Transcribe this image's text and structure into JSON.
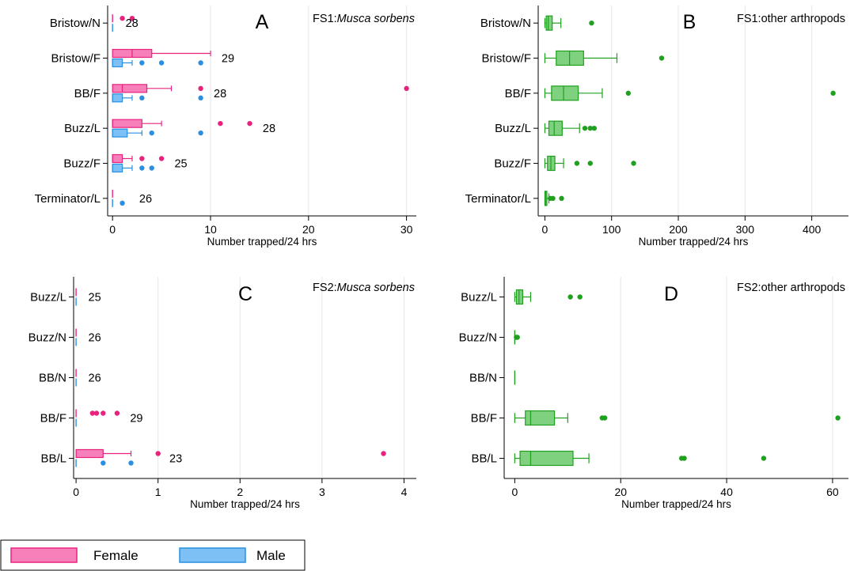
{
  "colors": {
    "female": "#e8237e",
    "female_fill": "#f77fba",
    "male": "#2a8fe0",
    "male_fill": "#7cc0f5",
    "other": "#1fa01f",
    "other_fill": "#7fd07f",
    "grid": "#e6e6e6"
  },
  "legend": {
    "items": [
      {
        "label": "Female",
        "key": "female"
      },
      {
        "label": "Male",
        "key": "male"
      }
    ]
  },
  "chart_data": [
    {
      "type": "box",
      "panel_letter": "A",
      "title_prefix": "FS1:",
      "title_species": "Musca sorbens",
      "xlabel": "Number trapped/24 hrs",
      "xlim": [
        -0.5,
        31
      ],
      "xticks": [
        0,
        10,
        20,
        30
      ],
      "categories": [
        "Bristow/N",
        "Bristow/F",
        "BB/F",
        "Buzz/L",
        "Buzz/F",
        "Terminator/L"
      ],
      "n_labels": [
        {
          "category": "Bristow/N",
          "text": "28",
          "x": 1.0
        },
        {
          "category": "Bristow/F",
          "text": "29",
          "x": 10.8
        },
        {
          "category": "BB/F",
          "text": "28",
          "x": 10.0
        },
        {
          "category": "Buzz/L",
          "text": "28",
          "x": 15.0
        },
        {
          "category": "Buzz/F",
          "text": "25",
          "x": 6.0
        },
        {
          "category": "Terminator/L",
          "text": "26",
          "x": 2.4
        }
      ],
      "series": [
        {
          "key": "female",
          "boxes": [
            {
              "category": "Bristow/N",
              "min": 0,
              "q1": 0,
              "median": 0,
              "q3": 0,
              "max": 0,
              "outliers": [
                1,
                2
              ]
            },
            {
              "category": "Bristow/F",
              "min": 0,
              "q1": 0,
              "median": 2,
              "q3": 4,
              "max": 10,
              "outliers": []
            },
            {
              "category": "BB/F",
              "min": 0,
              "q1": 0,
              "median": 1,
              "q3": 3.5,
              "max": 6,
              "outliers": [
                9,
                30
              ]
            },
            {
              "category": "Buzz/L",
              "min": 0,
              "q1": 0,
              "median": 0,
              "q3": 3,
              "max": 5,
              "outliers": [
                11,
                14
              ]
            },
            {
              "category": "Buzz/F",
              "min": 0,
              "q1": 0,
              "median": 0,
              "q3": 1,
              "max": 2,
              "outliers": [
                3,
                5
              ]
            },
            {
              "category": "Terminator/L",
              "min": 0,
              "q1": 0,
              "median": 0,
              "q3": 0,
              "max": 0,
              "outliers": []
            }
          ]
        },
        {
          "key": "male",
          "boxes": [
            {
              "category": "Bristow/N",
              "min": 0,
              "q1": 0,
              "median": 0,
              "q3": 0,
              "max": 0,
              "outliers": []
            },
            {
              "category": "Bristow/F",
              "min": 0,
              "q1": 0,
              "median": 0,
              "q3": 1,
              "max": 2,
              "outliers": [
                3,
                5,
                9
              ]
            },
            {
              "category": "BB/F",
              "min": 0,
              "q1": 0,
              "median": 0,
              "q3": 1,
              "max": 2,
              "outliers": [
                3,
                9
              ]
            },
            {
              "category": "Buzz/L",
              "min": 0,
              "q1": 0,
              "median": 0,
              "q3": 1.5,
              "max": 3,
              "outliers": [
                4,
                9
              ]
            },
            {
              "category": "Buzz/F",
              "min": 0,
              "q1": 0,
              "median": 0,
              "q3": 1,
              "max": 2,
              "outliers": [
                3,
                4
              ]
            },
            {
              "category": "Terminator/L",
              "min": 0,
              "q1": 0,
              "median": 0,
              "q3": 0,
              "max": 0,
              "outliers": [
                1
              ]
            }
          ]
        }
      ]
    },
    {
      "type": "box",
      "panel_letter": "B",
      "title_prefix": "FS1:other arthropods",
      "title_species": "",
      "xlabel": "Number trapped/24 hrs",
      "xlim": [
        -10,
        455
      ],
      "xticks": [
        0,
        100,
        200,
        300,
        400
      ],
      "categories": [
        "Bristow/N",
        "Bristow/F",
        "BB/F",
        "Buzz/L",
        "Buzz/F",
        "Terminator/L"
      ],
      "n_labels": [],
      "series": [
        {
          "key": "other",
          "boxes": [
            {
              "category": "Bristow/N",
              "min": 0,
              "q1": 2,
              "median": 5,
              "q3": 11,
              "max": 24,
              "outliers": [
                70
              ]
            },
            {
              "category": "Bristow/F",
              "min": 0,
              "q1": 17,
              "median": 37,
              "q3": 58,
              "max": 108,
              "outliers": [
                175
              ]
            },
            {
              "category": "BB/F",
              "min": 0,
              "q1": 10,
              "median": 28,
              "q3": 50,
              "max": 86,
              "outliers": [
                125,
                432
              ]
            },
            {
              "category": "Buzz/L",
              "min": 0,
              "q1": 6,
              "median": 14,
              "q3": 26,
              "max": 52,
              "outliers": [
                60,
                68,
                74
              ]
            },
            {
              "category": "Buzz/F",
              "min": 0,
              "q1": 4,
              "median": 9,
              "q3": 15,
              "max": 28,
              "outliers": [
                48,
                68,
                133
              ]
            },
            {
              "category": "Terminator/L",
              "min": 0,
              "q1": 0,
              "median": 1,
              "q3": 3,
              "max": 6,
              "outliers": [
                8,
                12,
                25
              ]
            }
          ]
        }
      ]
    },
    {
      "type": "box",
      "panel_letter": "C",
      "title_prefix": "FS2:",
      "title_species": "Musca sorbens",
      "xlabel": "Number trapped/24 hrs",
      "xlim": [
        -0.03,
        4.15
      ],
      "xticks": [
        0,
        1,
        2,
        3,
        4
      ],
      "categories": [
        "Buzz/L",
        "Buzz/N",
        "BB/N",
        "BB/F",
        "BB/L"
      ],
      "n_labels": [
        {
          "category": "Buzz/L",
          "text": "25",
          "x": 0.11
        },
        {
          "category": "Buzz/N",
          "text": "26",
          "x": 0.11
        },
        {
          "category": "BB/N",
          "text": "26",
          "x": 0.11
        },
        {
          "category": "BB/F",
          "text": "29",
          "x": 0.62
        },
        {
          "category": "BB/L",
          "text": "23",
          "x": 1.1
        }
      ],
      "series": [
        {
          "key": "female",
          "boxes": [
            {
              "category": "Buzz/L",
              "min": 0,
              "q1": 0,
              "median": 0,
              "q3": 0,
              "max": 0,
              "outliers": []
            },
            {
              "category": "Buzz/N",
              "min": 0,
              "q1": 0,
              "median": 0,
              "q3": 0,
              "max": 0,
              "outliers": []
            },
            {
              "category": "BB/N",
              "min": 0,
              "q1": 0,
              "median": 0,
              "q3": 0,
              "max": 0,
              "outliers": []
            },
            {
              "category": "BB/F",
              "min": 0,
              "q1": 0,
              "median": 0,
              "q3": 0,
              "max": 0,
              "outliers": [
                0.2,
                0.25,
                0.33,
                0.5
              ]
            },
            {
              "category": "BB/L",
              "min": 0,
              "q1": 0,
              "median": 0,
              "q3": 0.33,
              "max": 0.67,
              "outliers": [
                1.0,
                3.75
              ]
            }
          ]
        },
        {
          "key": "male",
          "boxes": [
            {
              "category": "Buzz/L",
              "min": 0,
              "q1": 0,
              "median": 0,
              "q3": 0,
              "max": 0,
              "outliers": []
            },
            {
              "category": "Buzz/N",
              "min": 0,
              "q1": 0,
              "median": 0,
              "q3": 0,
              "max": 0,
              "outliers": []
            },
            {
              "category": "BB/N",
              "min": 0,
              "q1": 0,
              "median": 0,
              "q3": 0,
              "max": 0,
              "outliers": []
            },
            {
              "category": "BB/F",
              "min": 0,
              "q1": 0,
              "median": 0,
              "q3": 0,
              "max": 0,
              "outliers": []
            },
            {
              "category": "BB/L",
              "min": 0,
              "q1": 0,
              "median": 0,
              "q3": 0,
              "max": 0,
              "outliers": [
                0.33,
                0.67
              ]
            }
          ]
        }
      ]
    },
    {
      "type": "box",
      "panel_letter": "D",
      "title_prefix": "FS2:other arthropods",
      "title_species": "",
      "xlabel": "Number trapped/24 hrs",
      "xlim": [
        -2,
        63
      ],
      "xticks": [
        0,
        20,
        40,
        60
      ],
      "categories": [
        "Buzz/L",
        "Buzz/N",
        "BB/N",
        "BB/F",
        "BB/L"
      ],
      "n_labels": [],
      "series": [
        {
          "key": "other",
          "boxes": [
            {
              "category": "Buzz/L",
              "min": 0,
              "q1": 0.3,
              "median": 0.8,
              "q3": 1.5,
              "max": 3,
              "outliers": [
                10.5,
                12.3
              ]
            },
            {
              "category": "Buzz/N",
              "min": 0,
              "q1": 0,
              "median": 0,
              "q3": 0,
              "max": 0,
              "outliers": [
                0.3,
                0.5
              ]
            },
            {
              "category": "BB/N",
              "min": 0,
              "q1": 0,
              "median": 0,
              "q3": 0,
              "max": 0,
              "outliers": []
            },
            {
              "category": "BB/F",
              "min": 0,
              "q1": 2,
              "median": 3,
              "q3": 7.5,
              "max": 10,
              "outliers": [
                16.5,
                17,
                61
              ]
            },
            {
              "category": "BB/L",
              "min": 0,
              "q1": 1,
              "median": 3,
              "q3": 11,
              "max": 14,
              "outliers": [
                31.5,
                32,
                47
              ]
            }
          ]
        }
      ]
    }
  ]
}
